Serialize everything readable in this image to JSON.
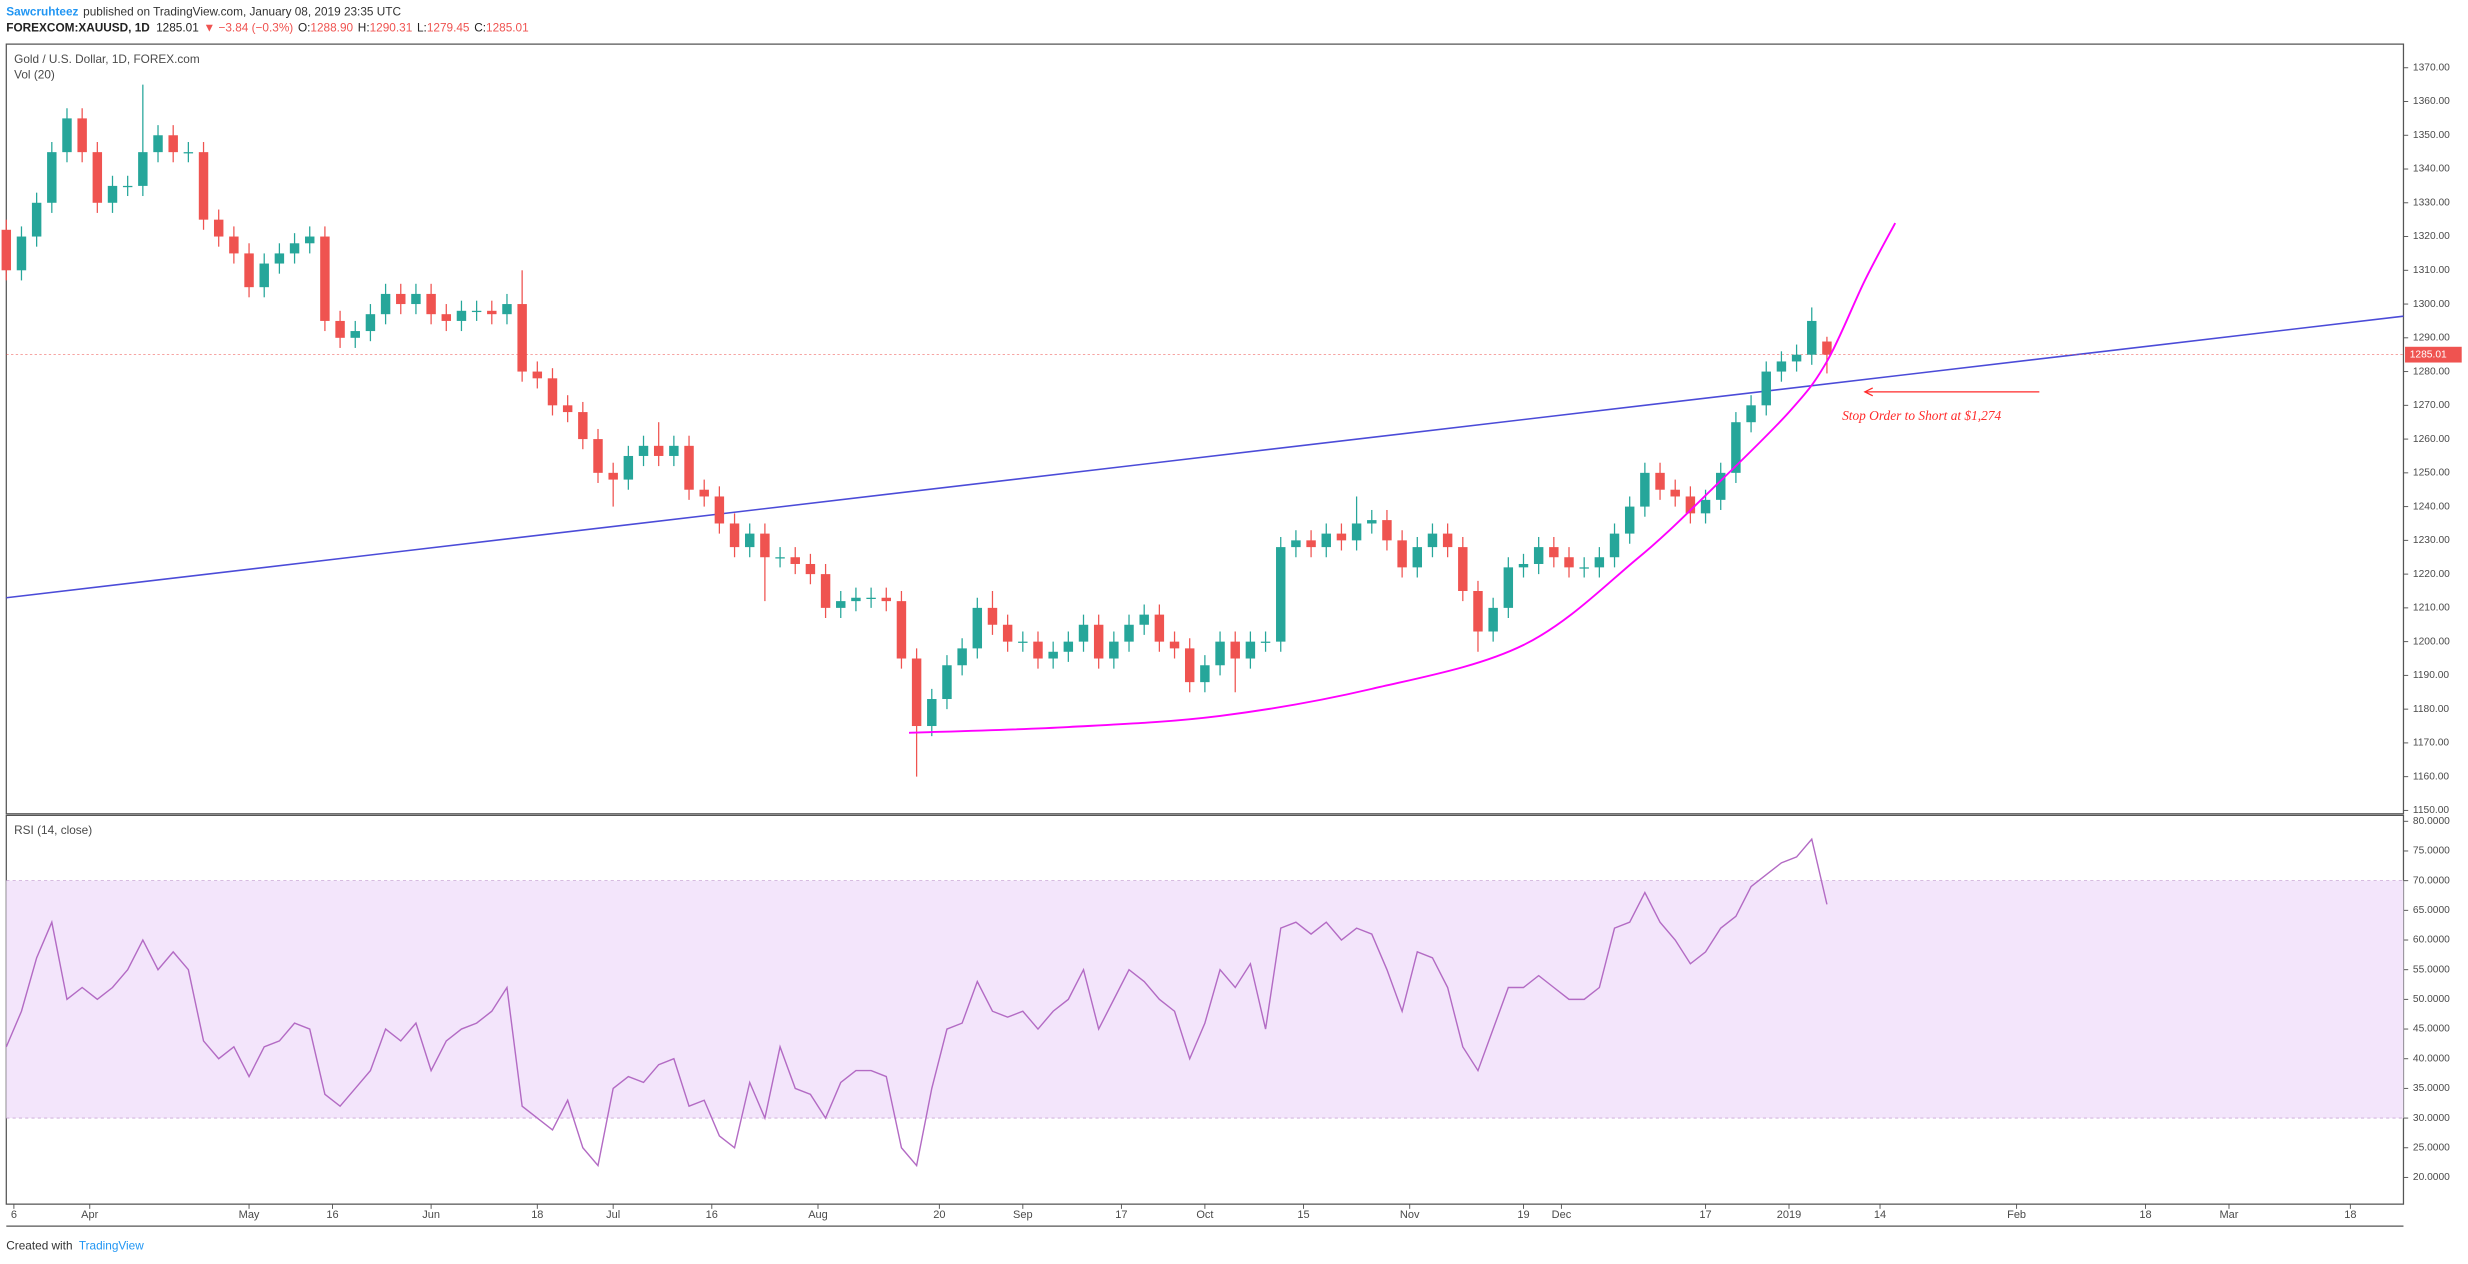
{
  "header": {
    "author": "Sawcruhteez",
    "published": "published on TradingView.com, January 08, 2019 23:35 UTC",
    "symbol": "FOREXCOM:XAUUSD, 1D",
    "last": "1285.01",
    "change": "▼ −3.84 (−0.3%)",
    "ohlc": [
      {
        "label": "O:",
        "value": "1288.90"
      },
      {
        "label": "H:",
        "value": "1290.31"
      },
      {
        "label": "L:",
        "value": "1279.45"
      },
      {
        "label": "C:",
        "value": "1285.01"
      }
    ]
  },
  "footer": {
    "text": "Created with",
    "brand": "TradingView"
  },
  "chart_data": [
    {
      "type": "candlestick",
      "title": "Gold / U.S. Dollar, 1D, FOREX.com",
      "subtitle": "Vol (20)",
      "up_color": "#26a69a",
      "down_color": "#ef5350",
      "xlim": [
        0,
        316
      ],
      "ylim": [
        1149,
        1377
      ],
      "yticks": [
        {
          "value": 1150,
          "label": "1150.00"
        },
        {
          "value": 1160,
          "label": "1160.00"
        },
        {
          "value": 1170,
          "label": "1170.00"
        },
        {
          "value": 1180,
          "label": "1180.00"
        },
        {
          "value": 1190,
          "label": "1190.00"
        },
        {
          "value": 1200,
          "label": "1200.00"
        },
        {
          "value": 1210,
          "label": "1210.00"
        },
        {
          "value": 1220,
          "label": "1220.00"
        },
        {
          "value": 1230,
          "label": "1230.00"
        },
        {
          "value": 1240,
          "label": "1240.00"
        },
        {
          "value": 1250,
          "label": "1250.00"
        },
        {
          "value": 1260,
          "label": "1260.00"
        },
        {
          "value": 1270,
          "label": "1270.00"
        },
        {
          "value": 1280,
          "label": "1280.00"
        },
        {
          "value": 1290,
          "label": "1290.00"
        },
        {
          "value": 1300,
          "label": "1300.00"
        },
        {
          "value": 1310,
          "label": "1310.00"
        },
        {
          "value": 1320,
          "label": "1320.00"
        },
        {
          "value": 1330,
          "label": "1330.00"
        },
        {
          "value": 1340,
          "label": "1340.00"
        },
        {
          "value": 1350,
          "label": "1350.00"
        },
        {
          "value": 1360,
          "label": "1360.00"
        },
        {
          "value": 1370,
          "label": "1370.00"
        }
      ],
      "x": [
        0,
        2,
        4,
        6,
        8,
        10,
        12,
        14,
        16,
        18,
        20,
        22,
        24,
        26,
        28,
        30,
        32,
        34,
        36,
        38,
        40,
        42,
        44,
        46,
        48,
        50,
        52,
        54,
        56,
        58,
        60,
        62,
        64,
        66,
        68,
        70,
        72,
        74,
        76,
        78,
        80,
        82,
        84,
        86,
        88,
        90,
        92,
        94,
        96,
        98,
        100,
        102,
        104,
        106,
        108,
        110,
        112,
        114,
        116,
        118,
        120,
        122,
        124,
        126,
        128,
        130,
        132,
        134,
        136,
        138,
        140,
        142,
        144,
        146,
        148,
        150,
        152,
        154,
        156,
        158,
        160,
        162,
        164,
        166,
        168,
        170,
        172,
        174,
        176,
        178,
        180,
        182,
        184,
        186,
        188,
        190,
        192,
        194,
        196,
        198,
        200,
        202,
        204,
        206,
        208,
        210,
        212,
        214,
        216,
        218,
        220,
        222,
        224,
        226,
        228,
        230,
        232,
        234,
        236,
        238,
        240
      ],
      "open": [
        1322,
        1310,
        1320,
        1330,
        1345,
        1355,
        1345,
        1330,
        1335,
        1335,
        1345,
        1350,
        1345,
        1345,
        1325,
        1320,
        1315,
        1305,
        1312,
        1315,
        1318,
        1320,
        1295,
        1290,
        1292,
        1297,
        1303,
        1300,
        1303,
        1297,
        1295,
        1298,
        1298,
        1297,
        1300,
        1280,
        1278,
        1270,
        1268,
        1260,
        1250,
        1248,
        1255,
        1258,
        1255,
        1258,
        1245,
        1243,
        1235,
        1228,
        1232,
        1225,
        1225,
        1223,
        1220,
        1210,
        1212,
        1213,
        1213,
        1212,
        1195,
        1175,
        1183,
        1193,
        1198,
        1210,
        1205,
        1200,
        1200,
        1195,
        1197,
        1200,
        1205,
        1195,
        1200,
        1205,
        1208,
        1200,
        1198,
        1188,
        1193,
        1200,
        1195,
        1200,
        1200,
        1228,
        1230,
        1228,
        1232,
        1230,
        1235,
        1236,
        1230,
        1222,
        1228,
        1232,
        1228,
        1215,
        1203,
        1210,
        1222,
        1223,
        1228,
        1225,
        1222,
        1222,
        1225,
        1232,
        1240,
        1250,
        1245,
        1243,
        1238,
        1242,
        1250,
        1265,
        1270,
        1280,
        1283,
        1285,
        1288.9
      ],
      "high": [
        1325,
        1323,
        1333,
        1348,
        1358,
        1358,
        1348,
        1338,
        1338,
        1365,
        1353,
        1353,
        1348,
        1348,
        1328,
        1323,
        1318,
        1315,
        1318,
        1321,
        1323,
        1323,
        1298,
        1295,
        1300,
        1306,
        1306,
        1306,
        1306,
        1300,
        1301,
        1301,
        1301,
        1303,
        1310,
        1283,
        1281,
        1273,
        1271,
        1263,
        1253,
        1258,
        1261,
        1265,
        1261,
        1261,
        1248,
        1246,
        1238,
        1235,
        1235,
        1228,
        1228,
        1226,
        1223,
        1215,
        1216,
        1216,
        1216,
        1215,
        1198,
        1186,
        1196,
        1201,
        1213,
        1215,
        1208,
        1203,
        1203,
        1200,
        1203,
        1208,
        1208,
        1203,
        1208,
        1211,
        1211,
        1203,
        1201,
        1196,
        1203,
        1203,
        1203,
        1203,
        1231,
        1233,
        1233,
        1235,
        1235,
        1243,
        1239,
        1239,
        1233,
        1231,
        1235,
        1235,
        1231,
        1218,
        1213,
        1225,
        1226,
        1231,
        1231,
        1228,
        1225,
        1228,
        1235,
        1243,
        1253,
        1253,
        1248,
        1246,
        1245,
        1253,
        1268,
        1273,
        1283,
        1286,
        1288,
        1299,
        1290.31
      ],
      "low": [
        1307,
        1307,
        1317,
        1327,
        1342,
        1342,
        1327,
        1327,
        1332,
        1332,
        1342,
        1342,
        1342,
        1322,
        1317,
        1312,
        1302,
        1302,
        1309,
        1312,
        1315,
        1292,
        1287,
        1287,
        1289,
        1294,
        1297,
        1297,
        1294,
        1292,
        1292,
        1295,
        1294,
        1294,
        1277,
        1275,
        1267,
        1265,
        1257,
        1247,
        1240,
        1245,
        1252,
        1252,
        1252,
        1242,
        1240,
        1232,
        1225,
        1225,
        1212,
        1222,
        1220,
        1217,
        1207,
        1207,
        1209,
        1210,
        1209,
        1192,
        1160,
        1172,
        1180,
        1190,
        1195,
        1202,
        1197,
        1197,
        1192,
        1192,
        1194,
        1197,
        1192,
        1192,
        1197,
        1202,
        1197,
        1195,
        1185,
        1185,
        1190,
        1185,
        1192,
        1197,
        1197,
        1225,
        1225,
        1225,
        1227,
        1227,
        1232,
        1227,
        1219,
        1219,
        1225,
        1225,
        1212,
        1197,
        1200,
        1207,
        1219,
        1220,
        1222,
        1219,
        1219,
        1219,
        1222,
        1229,
        1237,
        1242,
        1240,
        1235,
        1235,
        1239,
        1247,
        1262,
        1267,
        1277,
        1280,
        1282,
        1279.45
      ],
      "close": [
        1310,
        1320,
        1330,
        1345,
        1355,
        1345,
        1330,
        1335,
        1335,
        1345,
        1350,
        1345,
        1345,
        1325,
        1320,
        1315,
        1305,
        1312,
        1315,
        1318,
        1320,
        1295,
        1290,
        1292,
        1297,
        1303,
        1300,
        1303,
        1297,
        1295,
        1298,
        1298,
        1297,
        1300,
        1280,
        1278,
        1270,
        1268,
        1260,
        1250,
        1248,
        1255,
        1258,
        1255,
        1258,
        1245,
        1243,
        1235,
        1228,
        1232,
        1225,
        1225,
        1223,
        1220,
        1210,
        1212,
        1213,
        1213,
        1212,
        1195,
        1175,
        1183,
        1193,
        1198,
        1210,
        1205,
        1200,
        1200,
        1195,
        1197,
        1200,
        1205,
        1195,
        1200,
        1205,
        1208,
        1200,
        1198,
        1188,
        1193,
        1200,
        1195,
        1200,
        1200,
        1228,
        1230,
        1228,
        1232,
        1230,
        1235,
        1236,
        1230,
        1222,
        1228,
        1232,
        1228,
        1215,
        1203,
        1210,
        1222,
        1223,
        1228,
        1225,
        1222,
        1222,
        1225,
        1232,
        1240,
        1250,
        1245,
        1243,
        1238,
        1242,
        1250,
        1265,
        1270,
        1280,
        1283,
        1285,
        1295,
        1285.01
      ],
      "last_price": {
        "value": 1285.01,
        "label": "1285.01",
        "color": "#ef5350"
      },
      "trend_line": {
        "x": [
          0,
          316
        ],
        "y": [
          1213,
          1296.4
        ],
        "color": "#4b4bd8"
      },
      "curve": {
        "x": [
          119,
          140,
          160,
          180,
          200,
          215,
          225,
          235,
          240,
          245,
          249
        ],
        "y": [
          1173,
          1174.7,
          1178,
          1186,
          1199,
          1224.6,
          1245.5,
          1268,
          1283,
          1307,
          1324
        ],
        "color": "#ff00ff"
      },
      "annotation": {
        "text": "Stop Order to Short at $1,274",
        "x": [
          245,
          268
        ],
        "y": 1274,
        "text_x": 242,
        "text_y": 1266.5,
        "color": "#ff2a2a"
      }
    },
    {
      "type": "line",
      "title": "RSI (14, close)",
      "color": "#b36bc4",
      "band": [
        30,
        70
      ],
      "band_color": "#f3e5fb",
      "xlim": [
        0,
        316
      ],
      "ylim": [
        15.5,
        81
      ],
      "yticks": [
        {
          "value": 20,
          "label": "20.0000"
        },
        {
          "value": 25,
          "label": "25.0000"
        },
        {
          "value": 30,
          "label": "30.0000"
        },
        {
          "value": 35,
          "label": "35.0000"
        },
        {
          "value": 40,
          "label": "40.0000"
        },
        {
          "value": 45,
          "label": "45.0000"
        },
        {
          "value": 50,
          "label": "50.0000"
        },
        {
          "value": 55,
          "label": "55.0000"
        },
        {
          "value": 60,
          "label": "60.0000"
        },
        {
          "value": 65,
          "label": "65.0000"
        },
        {
          "value": 70,
          "label": "70.0000"
        },
        {
          "value": 75,
          "label": "75.0000"
        },
        {
          "value": 80,
          "label": "80.0000"
        }
      ],
      "xticks": [
        {
          "value": 1,
          "label": "6"
        },
        {
          "value": 11,
          "label": "Apr"
        },
        {
          "value": 32,
          "label": "May"
        },
        {
          "value": 43,
          "label": "16"
        },
        {
          "value": 56,
          "label": "Jun"
        },
        {
          "value": 70,
          "label": "18"
        },
        {
          "value": 80,
          "label": "Jul"
        },
        {
          "value": 93,
          "label": "16"
        },
        {
          "value": 107,
          "label": "Aug"
        },
        {
          "value": 123,
          "label": "20"
        },
        {
          "value": 134,
          "label": "Sep"
        },
        {
          "value": 147,
          "label": "17"
        },
        {
          "value": 158,
          "label": "Oct"
        },
        {
          "value": 171,
          "label": "15"
        },
        {
          "value": 185,
          "label": "Nov"
        },
        {
          "value": 200,
          "label": "19"
        },
        {
          "value": 205,
          "label": "Dec"
        },
        {
          "value": 224,
          "label": "17"
        },
        {
          "value": 235,
          "label": "2019"
        },
        {
          "value": 247,
          "label": "14"
        },
        {
          "value": 265,
          "label": "Feb"
        },
        {
          "value": 282,
          "label": "18"
        },
        {
          "value": 293,
          "label": "Mar"
        },
        {
          "value": 309,
          "label": "18"
        }
      ],
      "x": [
        0,
        2,
        4,
        6,
        8,
        10,
        12,
        14,
        16,
        18,
        20,
        22,
        24,
        26,
        28,
        30,
        32,
        34,
        36,
        38,
        40,
        42,
        44,
        46,
        48,
        50,
        52,
        54,
        56,
        58,
        60,
        62,
        64,
        66,
        68,
        70,
        72,
        74,
        76,
        78,
        80,
        82,
        84,
        86,
        88,
        90,
        92,
        94,
        96,
        98,
        100,
        102,
        104,
        106,
        108,
        110,
        112,
        114,
        116,
        118,
        120,
        122,
        124,
        126,
        128,
        130,
        132,
        134,
        136,
        138,
        140,
        142,
        144,
        146,
        148,
        150,
        152,
        154,
        156,
        158,
        160,
        162,
        164,
        166,
        168,
        170,
        172,
        174,
        176,
        178,
        180,
        182,
        184,
        186,
        188,
        190,
        192,
        194,
        196,
        198,
        200,
        202,
        204,
        206,
        208,
        210,
        212,
        214,
        216,
        218,
        220,
        222,
        224,
        226,
        228,
        230,
        232,
        234,
        236,
        238,
        240
      ],
      "values": [
        42,
        48,
        57,
        63,
        50,
        52,
        50,
        52,
        55,
        60,
        55,
        58,
        55,
        43,
        40,
        42,
        37,
        42,
        43,
        46,
        45,
        34,
        32,
        35,
        38,
        45,
        43,
        46,
        38,
        43,
        45,
        46,
        48,
        52,
        32,
        30,
        28,
        33,
        25,
        22,
        35,
        37,
        36,
        39,
        40,
        32,
        33,
        27,
        25,
        36,
        30,
        42,
        35,
        34,
        30,
        36,
        38,
        38,
        37,
        25,
        22,
        35,
        45,
        46,
        53,
        48,
        47,
        48,
        45,
        48,
        50,
        55,
        45,
        50,
        55,
        53,
        50,
        48,
        40,
        46,
        55,
        52,
        56,
        45,
        62,
        63,
        61,
        63,
        60,
        62,
        61,
        55,
        48,
        58,
        57,
        52,
        42,
        38,
        45,
        52,
        52,
        54,
        52,
        50,
        50,
        52,
        62,
        63,
        68,
        63,
        60,
        56,
        58,
        62,
        64,
        69,
        71,
        73,
        74,
        77,
        66
      ]
    }
  ]
}
